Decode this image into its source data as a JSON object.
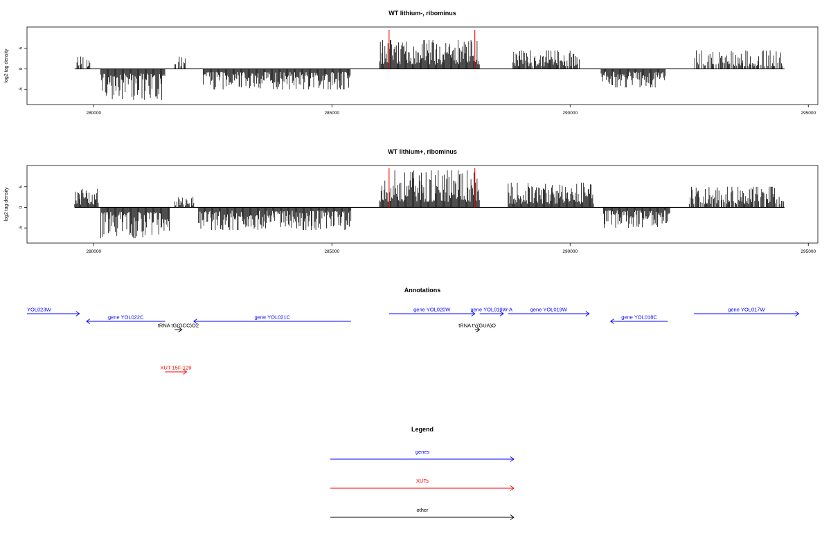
{
  "colors": {
    "gene": "#0000ff",
    "xut": "#ff0000",
    "other": "#000000",
    "marker": "#ff0000",
    "signal": "#000000"
  },
  "chart_data": [
    {
      "type": "bar",
      "title": "WT lithium-, ribominus",
      "ylabel": "log2 tag density",
      "xlim": [
        278600,
        295200
      ],
      "ylim": [
        -8,
        9.5
      ],
      "xticks": [
        280000,
        285000,
        290000,
        295000
      ],
      "xtick_labels": [
        "280000",
        "285000",
        "290000",
        "295000"
      ],
      "yticks": [
        5,
        0,
        -5
      ],
      "ytick_labels": [
        "5",
        "0",
        "-5"
      ],
      "baseline": [
        279600,
        294500
      ],
      "markers": [
        286200,
        288000
      ],
      "marker_height": 9.5,
      "regions": [
        {
          "start": 279600,
          "end": 279950,
          "sign": 1,
          "amp": 3.0,
          "density": 0.5
        },
        {
          "start": 280150,
          "end": 281500,
          "sign": -1,
          "amp": 7.5,
          "density": 1.0
        },
        {
          "start": 281700,
          "end": 281950,
          "sign": 1,
          "amp": 3.0,
          "density": 0.6
        },
        {
          "start": 282300,
          "end": 285400,
          "sign": -1,
          "amp": 5.0,
          "density": 1.0
        },
        {
          "start": 286000,
          "end": 288100,
          "sign": 1,
          "amp": 7.0,
          "density": 1.0
        },
        {
          "start": 288800,
          "end": 290200,
          "sign": 1,
          "amp": 4.5,
          "density": 0.9
        },
        {
          "start": 290650,
          "end": 292000,
          "sign": -1,
          "amp": 4.5,
          "density": 1.0
        },
        {
          "start": 292600,
          "end": 294500,
          "sign": 1,
          "amp": 4.5,
          "density": 0.55
        }
      ]
    },
    {
      "type": "bar",
      "title": "WT lithium+, ribominus",
      "ylabel": "log2 tag density",
      "xlim": [
        278600,
        295200
      ],
      "ylim": [
        -8,
        9.5
      ],
      "xticks": [
        280000,
        285000,
        290000,
        295000
      ],
      "xtick_labels": [
        "280000",
        "285000",
        "290000",
        "295000"
      ],
      "yticks": [
        5,
        0,
        -5
      ],
      "ytick_labels": [
        "5",
        "0",
        "-5"
      ],
      "baseline": [
        279600,
        294500
      ],
      "markers": [
        286200,
        288000
      ],
      "marker_height": 9.5,
      "regions": [
        {
          "start": 279600,
          "end": 280100,
          "sign": 1,
          "amp": 4.5,
          "density": 0.9
        },
        {
          "start": 280150,
          "end": 281600,
          "sign": -1,
          "amp": 7.5,
          "density": 1.0
        },
        {
          "start": 281700,
          "end": 282100,
          "sign": 1,
          "amp": 3.0,
          "density": 0.7
        },
        {
          "start": 282200,
          "end": 285400,
          "sign": -1,
          "amp": 5.5,
          "density": 1.0
        },
        {
          "start": 286000,
          "end": 288100,
          "sign": 1,
          "amp": 9.0,
          "density": 1.0
        },
        {
          "start": 288700,
          "end": 290500,
          "sign": 1,
          "amp": 6.0,
          "density": 1.0
        },
        {
          "start": 290700,
          "end": 292100,
          "sign": -1,
          "amp": 5.0,
          "density": 1.0
        },
        {
          "start": 292500,
          "end": 294500,
          "sign": 1,
          "amp": 5.0,
          "density": 0.8
        }
      ]
    }
  ],
  "annotations": {
    "title": "Annotations",
    "xlim": [
      278600,
      295200
    ],
    "features": [
      {
        "label": "YOL023W",
        "start": 278600,
        "end": 279700,
        "strand": "+",
        "kind": "gene",
        "row": 0,
        "label_align": "start"
      },
      {
        "label": "gene YOL022C",
        "start": 279850,
        "end": 281500,
        "strand": "-",
        "kind": "gene",
        "row": 1,
        "label_align": "middle"
      },
      {
        "label": "tRNA tG(GCC)O2",
        "start": 281700,
        "end": 281850,
        "strand": "+",
        "kind": "other",
        "row": 2,
        "label_align": "middle"
      },
      {
        "label": "gene YOL021C",
        "start": 282100,
        "end": 285400,
        "strand": "-",
        "kind": "gene",
        "row": 1,
        "label_align": "middle"
      },
      {
        "label": "gene YOL020W",
        "start": 286200,
        "end": 288000,
        "strand": "+",
        "kind": "gene",
        "row": 0,
        "label_align": "middle"
      },
      {
        "label": "gene YOL019W-A",
        "start": 288100,
        "end": 288600,
        "strand": "+",
        "kind": "gene",
        "row": 0,
        "label_align": "middle"
      },
      {
        "label": "tRNA tY(GUA)O",
        "start": 288000,
        "end": 288100,
        "strand": "+",
        "kind": "other",
        "row": 2,
        "label_align": "middle"
      },
      {
        "label": "gene YOL019W",
        "start": 288700,
        "end": 290400,
        "strand": "+",
        "kind": "gene",
        "row": 0,
        "label_align": "middle"
      },
      {
        "label": "gene YOL018C",
        "start": 290850,
        "end": 292050,
        "strand": "-",
        "kind": "gene",
        "row": 1,
        "label_align": "middle"
      },
      {
        "label": "gene YOL017W",
        "start": 292600,
        "end": 294800,
        "strand": "+",
        "kind": "gene",
        "row": 0,
        "label_align": "middle"
      },
      {
        "label": "XUT 15F-129",
        "start": 281500,
        "end": 281950,
        "strand": "+",
        "kind": "xut",
        "row": 3,
        "label_align": "middle"
      }
    ]
  },
  "legend": {
    "title": "Legend",
    "entries": [
      {
        "label": "genes",
        "kind": "gene"
      },
      {
        "label": "XUTs",
        "kind": "xut"
      },
      {
        "label": "other",
        "kind": "other"
      }
    ]
  }
}
